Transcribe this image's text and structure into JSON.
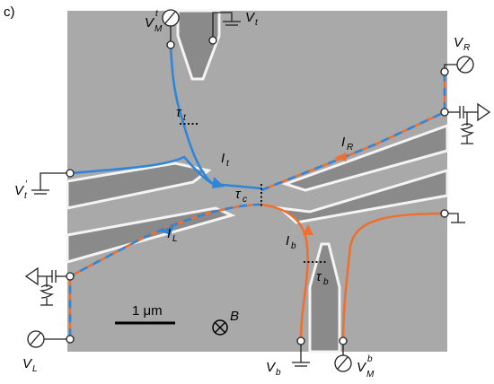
{
  "panel_label": "c)",
  "labels": [
    {
      "base": "V",
      "sub": "M",
      "sup": "t"
    },
    {
      "base": "V",
      "sub": "t"
    },
    {
      "base": "V",
      "sub": "R"
    },
    {
      "base": "τ",
      "sub": "t"
    },
    {
      "base": "I",
      "sub": "t"
    },
    {
      "base": "I",
      "sub": "R"
    },
    {
      "base": "τ",
      "sub": "c"
    },
    {
      "base": "V",
      "sub": "t",
      "sup": "′"
    },
    {
      "base": "I",
      "sub": "L"
    },
    {
      "base": "I",
      "sub": "b"
    },
    {
      "base": "τ",
      "sub": "b"
    },
    {
      "base": "V",
      "sub": "L"
    },
    {
      "base": "V",
      "sub": "b"
    },
    {
      "base": "V",
      "sub": "M",
      "sup": "b"
    }
  ],
  "scale_bar": "1 μm",
  "field": "B"
}
